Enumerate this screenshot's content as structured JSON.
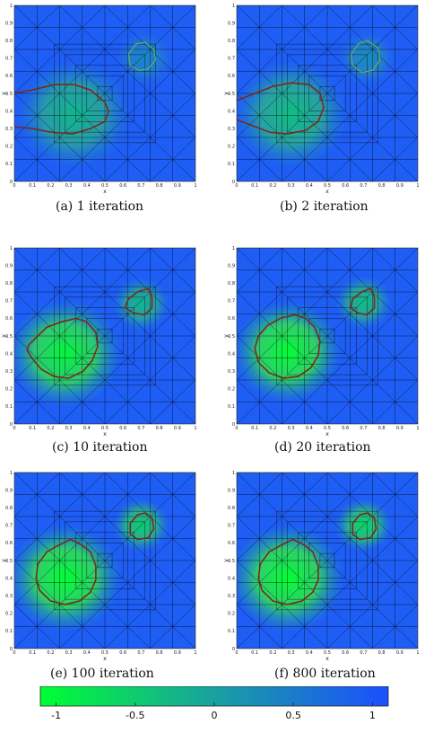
{
  "figure": {
    "panels": [
      {
        "id": "a",
        "caption": "(a) 1 iteration",
        "xlabel": "x",
        "ylabel": "y",
        "outline_color": "#7a2a1a",
        "contour_color": "#6ab84a",
        "blob1": {
          "cx": 0.33,
          "cy": 0.38,
          "r": 0.2,
          "strength": 0.55
        },
        "blob2": {
          "cx": 0.72,
          "cy": 0.7,
          "r": 0.1,
          "strength": 0.25
        },
        "interface1": [
          [
            0.0,
            0.5
          ],
          [
            0.1,
            0.52
          ],
          [
            0.22,
            0.55
          ],
          [
            0.33,
            0.55
          ],
          [
            0.42,
            0.52
          ],
          [
            0.5,
            0.45
          ],
          [
            0.52,
            0.4
          ],
          [
            0.5,
            0.34
          ],
          [
            0.42,
            0.3
          ],
          [
            0.32,
            0.27
          ],
          [
            0.2,
            0.28
          ],
          [
            0.1,
            0.3
          ],
          [
            0.0,
            0.31
          ]
        ],
        "interface2": [
          [
            0.72,
            0.79
          ],
          [
            0.77,
            0.75
          ],
          [
            0.78,
            0.69
          ],
          [
            0.74,
            0.64
          ],
          [
            0.69,
            0.63
          ],
          [
            0.64,
            0.66
          ],
          [
            0.63,
            0.72
          ],
          [
            0.67,
            0.78
          ]
        ],
        "interface2_is_contour": true
      },
      {
        "id": "b",
        "caption": "(b) 2 iteration",
        "xlabel": "x",
        "ylabel": "y",
        "outline_color": "#7a2a1a",
        "contour_color": "#6ab84a",
        "blob1": {
          "cx": 0.3,
          "cy": 0.38,
          "r": 0.2,
          "strength": 0.6
        },
        "blob2": {
          "cx": 0.72,
          "cy": 0.7,
          "r": 0.1,
          "strength": 0.3
        },
        "interface1": [
          [
            0.0,
            0.46
          ],
          [
            0.1,
            0.5
          ],
          [
            0.2,
            0.54
          ],
          [
            0.3,
            0.56
          ],
          [
            0.4,
            0.55
          ],
          [
            0.46,
            0.5
          ],
          [
            0.48,
            0.42
          ],
          [
            0.45,
            0.34
          ],
          [
            0.38,
            0.29
          ],
          [
            0.28,
            0.27
          ],
          [
            0.18,
            0.28
          ],
          [
            0.08,
            0.32
          ],
          [
            0.0,
            0.35
          ]
        ],
        "interface2": [
          [
            0.72,
            0.8
          ],
          [
            0.78,
            0.76
          ],
          [
            0.79,
            0.69
          ],
          [
            0.75,
            0.63
          ],
          [
            0.69,
            0.62
          ],
          [
            0.64,
            0.66
          ],
          [
            0.63,
            0.72
          ],
          [
            0.67,
            0.78
          ]
        ],
        "interface2_is_contour": true
      },
      {
        "id": "c",
        "caption": "(c) 10 iteration",
        "xlabel": "x",
        "ylabel": "y",
        "outline_color": "#7a2a1a",
        "contour_color": "#6ab84a",
        "blob1": {
          "cx": 0.28,
          "cy": 0.4,
          "r": 0.2,
          "strength": 0.95
        },
        "blob2": {
          "cx": 0.7,
          "cy": 0.68,
          "r": 0.1,
          "strength": 0.55
        },
        "interface1": [
          [
            0.08,
            0.45
          ],
          [
            0.13,
            0.5
          ],
          [
            0.18,
            0.55
          ],
          [
            0.26,
            0.58
          ],
          [
            0.34,
            0.6
          ],
          [
            0.4,
            0.58
          ],
          [
            0.45,
            0.52
          ],
          [
            0.46,
            0.44
          ],
          [
            0.43,
            0.36
          ],
          [
            0.38,
            0.3
          ],
          [
            0.3,
            0.26
          ],
          [
            0.22,
            0.27
          ],
          [
            0.15,
            0.31
          ],
          [
            0.1,
            0.37
          ],
          [
            0.07,
            0.42
          ]
        ],
        "interface2": [
          [
            0.74,
            0.77
          ],
          [
            0.76,
            0.72
          ],
          [
            0.76,
            0.66
          ],
          [
            0.72,
            0.62
          ],
          [
            0.66,
            0.63
          ],
          [
            0.61,
            0.66
          ],
          [
            0.63,
            0.71
          ],
          [
            0.68,
            0.75
          ]
        ],
        "interface2_is_contour": false
      },
      {
        "id": "d",
        "caption": "(d) 20 iteration",
        "xlabel": "x",
        "ylabel": "y",
        "outline_color": "#7a2a1a",
        "contour_color": "#6ab84a",
        "blob1": {
          "cx": 0.28,
          "cy": 0.41,
          "r": 0.19,
          "strength": 1.0
        },
        "blob2": {
          "cx": 0.7,
          "cy": 0.69,
          "r": 0.1,
          "strength": 0.6
        },
        "interface1": [
          [
            0.1,
            0.43
          ],
          [
            0.12,
            0.5
          ],
          [
            0.17,
            0.56
          ],
          [
            0.24,
            0.6
          ],
          [
            0.32,
            0.62
          ],
          [
            0.38,
            0.6
          ],
          [
            0.43,
            0.55
          ],
          [
            0.46,
            0.47
          ],
          [
            0.45,
            0.39
          ],
          [
            0.41,
            0.32
          ],
          [
            0.34,
            0.27
          ],
          [
            0.26,
            0.26
          ],
          [
            0.18,
            0.29
          ],
          [
            0.12,
            0.35
          ]
        ],
        "interface2": [
          [
            0.74,
            0.77
          ],
          [
            0.76,
            0.72
          ],
          [
            0.76,
            0.66
          ],
          [
            0.72,
            0.62
          ],
          [
            0.67,
            0.63
          ],
          [
            0.63,
            0.66
          ],
          [
            0.64,
            0.71
          ],
          [
            0.69,
            0.75
          ]
        ],
        "interface2_is_contour": false
      },
      {
        "id": "e",
        "caption": "(e) 100 iteration",
        "xlabel": "x",
        "ylabel": "y",
        "outline_color": "#7a2a1a",
        "contour_color": "#6ab84a",
        "blob1": {
          "cx": 0.28,
          "cy": 0.4,
          "r": 0.2,
          "strength": 1.0
        },
        "blob2": {
          "cx": 0.7,
          "cy": 0.7,
          "r": 0.1,
          "strength": 0.7
        },
        "interface1": [
          [
            0.12,
            0.4
          ],
          [
            0.13,
            0.48
          ],
          [
            0.18,
            0.55
          ],
          [
            0.25,
            0.59
          ],
          [
            0.31,
            0.62
          ],
          [
            0.37,
            0.59
          ],
          [
            0.42,
            0.55
          ],
          [
            0.45,
            0.47
          ],
          [
            0.45,
            0.39
          ],
          [
            0.42,
            0.32
          ],
          [
            0.36,
            0.27
          ],
          [
            0.28,
            0.25
          ],
          [
            0.2,
            0.27
          ],
          [
            0.14,
            0.33
          ]
        ],
        "interface2": [
          [
            0.72,
            0.77
          ],
          [
            0.76,
            0.74
          ],
          [
            0.77,
            0.68
          ],
          [
            0.74,
            0.63
          ],
          [
            0.68,
            0.62
          ],
          [
            0.64,
            0.65
          ],
          [
            0.64,
            0.71
          ],
          [
            0.68,
            0.76
          ]
        ],
        "interface2_is_contour": false
      },
      {
        "id": "f",
        "caption": "(f) 800 iteration",
        "xlabel": "x",
        "ylabel": "y",
        "outline_color": "#7a2a1a",
        "contour_color": "#6ab84a",
        "blob1": {
          "cx": 0.28,
          "cy": 0.4,
          "r": 0.2,
          "strength": 1.0
        },
        "blob2": {
          "cx": 0.7,
          "cy": 0.7,
          "r": 0.1,
          "strength": 0.75
        },
        "interface1": [
          [
            0.12,
            0.4
          ],
          [
            0.13,
            0.48
          ],
          [
            0.18,
            0.55
          ],
          [
            0.25,
            0.59
          ],
          [
            0.31,
            0.62
          ],
          [
            0.37,
            0.59
          ],
          [
            0.42,
            0.55
          ],
          [
            0.45,
            0.47
          ],
          [
            0.45,
            0.39
          ],
          [
            0.42,
            0.32
          ],
          [
            0.36,
            0.27
          ],
          [
            0.28,
            0.25
          ],
          [
            0.2,
            0.27
          ],
          [
            0.14,
            0.33
          ]
        ],
        "interface2": [
          [
            0.72,
            0.77
          ],
          [
            0.76,
            0.74
          ],
          [
            0.77,
            0.68
          ],
          [
            0.74,
            0.63
          ],
          [
            0.68,
            0.62
          ],
          [
            0.64,
            0.65
          ],
          [
            0.64,
            0.71
          ],
          [
            0.68,
            0.76
          ]
        ],
        "interface2_is_contour": false
      }
    ],
    "xticks": [
      "0",
      "0.1",
      "0.2",
      "0.3",
      "0.4",
      "0.5",
      "0.6",
      "0.7",
      "0.8",
      "0.9",
      "1"
    ],
    "yticks": [
      "0",
      "0.1",
      "0.2",
      "0.3",
      "0.4",
      "0.5",
      "0.6",
      "0.7",
      "0.8",
      "0.9",
      "1"
    ],
    "colorbar": {
      "min_color": "#00ff33",
      "max_color": "#1a4fff",
      "mid_color": "#1aa0a0",
      "range": [
        -1.1,
        1.1
      ],
      "ticks": [
        "-1",
        "-0.5",
        "0",
        "0.5",
        "1"
      ],
      "tick_values": [
        -1,
        -0.5,
        0,
        0.5,
        1
      ]
    },
    "mesh_color": "#000000",
    "background_color": "#1f5ef5"
  }
}
